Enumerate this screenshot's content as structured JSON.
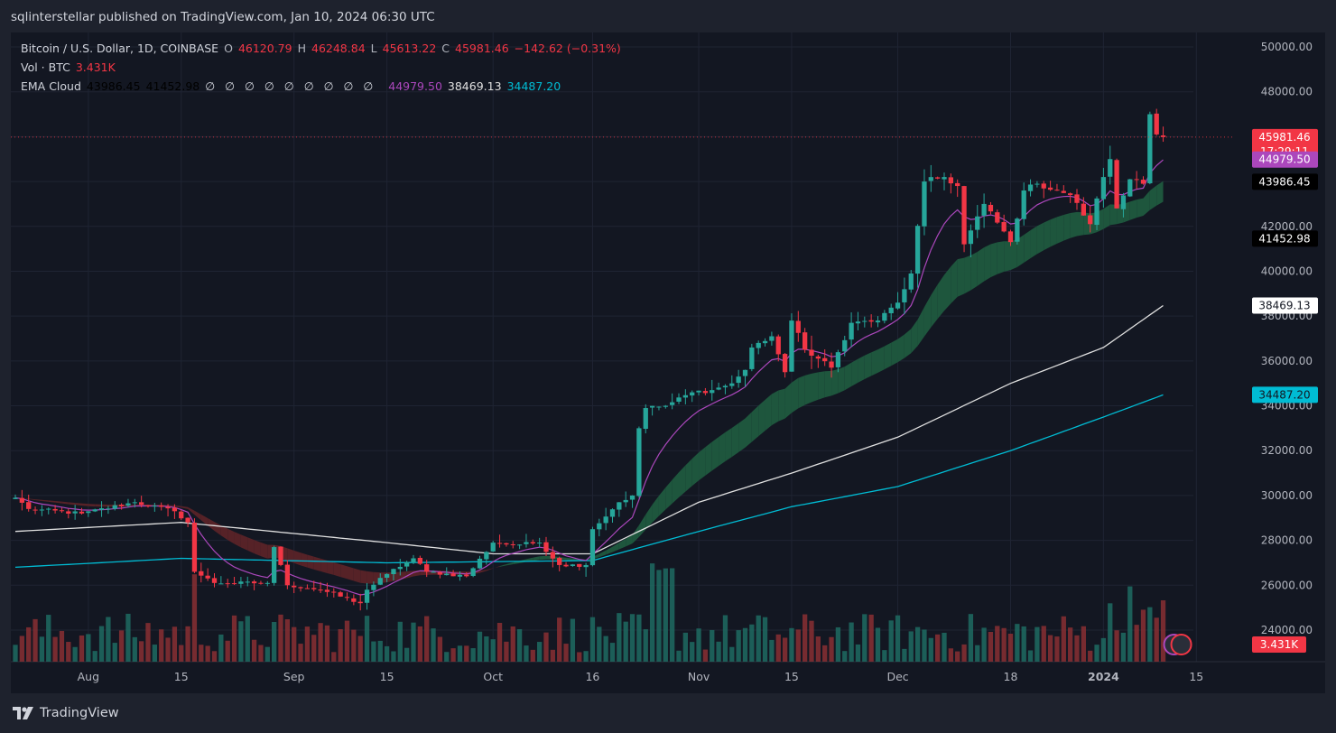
{
  "header": {
    "publisher_line": "sqlinterstellar published on TradingView.com, Jan 10, 2024 06:30 UTC"
  },
  "legend": {
    "symbol": "Bitcoin / U.S. Dollar, 1D, COINBASE",
    "o_label": "O",
    "o_value": "46120.79",
    "h_label": "H",
    "h_value": "46248.84",
    "l_label": "L",
    "l_value": "45613.22",
    "c_label": "C",
    "c_value": "45981.46",
    "change": "−142.62 (−0.31%)",
    "vol_label": "Vol · BTC",
    "vol_value": "3.431K",
    "ema_label": "EMA Cloud",
    "ema_v1": "43986.45",
    "ema_v2": "41452.98",
    "ema_slots": [
      "∅",
      "∅",
      "∅",
      "∅",
      "∅",
      "∅",
      "∅",
      "∅",
      "∅"
    ],
    "ema_v3": "44979.50",
    "ema_v4": "38469.13",
    "ema_v5": "34487.20"
  },
  "footer": {
    "brand": "TradingView"
  },
  "chart_data": {
    "type": "candlestick",
    "y_ticks": [
      "50000.00",
      "48000.00",
      "46000.00",
      "44000.00",
      "42000.00",
      "40000.00",
      "38000.00",
      "36000.00",
      "34000.00",
      "32000.00",
      "30000.00",
      "28000.00",
      "26000.00",
      "24000.00"
    ],
    "y_range": [
      23000,
      50600
    ],
    "x_ticks": [
      {
        "label": "Aug",
        "day": "2023-08-01"
      },
      {
        "label": "15",
        "day": "2023-08-15"
      },
      {
        "label": "Sep",
        "day": "2023-09-01"
      },
      {
        "label": "15",
        "day": "2023-09-15"
      },
      {
        "label": "Oct",
        "day": "2023-10-01"
      },
      {
        "label": "16",
        "day": "2023-10-16"
      },
      {
        "label": "Nov",
        "day": "2023-11-01"
      },
      {
        "label": "15",
        "day": "2023-11-15"
      },
      {
        "label": "Dec",
        "day": "2023-12-01"
      },
      {
        "label": "18",
        "day": "2023-12-18"
      },
      {
        "label": "2024",
        "day": "2024-01-01"
      },
      {
        "label": "15",
        "day": "2024-01-15"
      }
    ],
    "close_anchors": [
      {
        "date": "2023-07-21",
        "close": 29900
      },
      {
        "date": "2023-07-23",
        "close": 29400
      },
      {
        "date": "2023-07-31",
        "close": 29200
      },
      {
        "date": "2023-08-08",
        "close": 29700
      },
      {
        "date": "2023-08-14",
        "close": 29300
      },
      {
        "date": "2023-08-16",
        "close": 28800
      },
      {
        "date": "2023-08-17",
        "close": 26600
      },
      {
        "date": "2023-08-20",
        "close": 26100
      },
      {
        "date": "2023-08-28",
        "close": 26100
      },
      {
        "date": "2023-08-29",
        "close": 27700
      },
      {
        "date": "2023-08-31",
        "close": 26000
      },
      {
        "date": "2023-09-05",
        "close": 25800
      },
      {
        "date": "2023-09-11",
        "close": 25200
      },
      {
        "date": "2023-09-12",
        "close": 25800
      },
      {
        "date": "2023-09-15",
        "close": 26500
      },
      {
        "date": "2023-09-19",
        "close": 27200
      },
      {
        "date": "2023-09-21",
        "close": 26600
      },
      {
        "date": "2023-09-27",
        "close": 26400
      },
      {
        "date": "2023-10-01",
        "close": 27900
      },
      {
        "date": "2023-10-04",
        "close": 27800
      },
      {
        "date": "2023-10-08",
        "close": 27900
      },
      {
        "date": "2023-10-11",
        "close": 26900
      },
      {
        "date": "2023-10-15",
        "close": 26900
      },
      {
        "date": "2023-10-16",
        "close": 28500
      },
      {
        "date": "2023-10-20",
        "close": 29700
      },
      {
        "date": "2023-10-22",
        "close": 30000
      },
      {
        "date": "2023-10-23",
        "close": 33000
      },
      {
        "date": "2023-10-24",
        "close": 33900
      },
      {
        "date": "2023-10-27",
        "close": 34000
      },
      {
        "date": "2023-10-31",
        "close": 34600
      },
      {
        "date": "2023-11-03",
        "close": 34700
      },
      {
        "date": "2023-11-06",
        "close": 35000
      },
      {
        "date": "2023-11-08",
        "close": 35600
      },
      {
        "date": "2023-11-09",
        "close": 36600
      },
      {
        "date": "2023-11-12",
        "close": 37100
      },
      {
        "date": "2023-11-14",
        "close": 35500
      },
      {
        "date": "2023-11-15",
        "close": 37800
      },
      {
        "date": "2023-11-17",
        "close": 36500
      },
      {
        "date": "2023-11-21",
        "close": 35700
      },
      {
        "date": "2023-11-24",
        "close": 37700
      },
      {
        "date": "2023-11-28",
        "close": 37800
      },
      {
        "date": "2023-12-01",
        "close": 38600
      },
      {
        "date": "2023-12-03",
        "close": 39900
      },
      {
        "date": "2023-12-05",
        "close": 44000
      },
      {
        "date": "2023-12-08",
        "close": 44200
      },
      {
        "date": "2023-12-10",
        "close": 43800
      },
      {
        "date": "2023-12-11",
        "close": 41200
      },
      {
        "date": "2023-12-14",
        "close": 43000
      },
      {
        "date": "2023-12-18",
        "close": 41300
      },
      {
        "date": "2023-12-20",
        "close": 43600
      },
      {
        "date": "2023-12-22",
        "close": 43900
      },
      {
        "date": "2023-12-25",
        "close": 43600
      },
      {
        "date": "2023-12-27",
        "close": 43400
      },
      {
        "date": "2023-12-30",
        "close": 42100
      },
      {
        "date": "2024-01-01",
        "close": 44200
      },
      {
        "date": "2024-01-02",
        "close": 45000
      },
      {
        "date": "2024-01-03",
        "close": 42800
      },
      {
        "date": "2024-01-05",
        "close": 44100
      },
      {
        "date": "2024-01-07",
        "close": 43900
      },
      {
        "date": "2024-01-08",
        "close": 47000
      },
      {
        "date": "2024-01-09",
        "close": 46100
      },
      {
        "date": "2024-01-10",
        "close": 45981
      }
    ],
    "ema_slow": [
      {
        "date": "2023-07-21",
        "value": 28400
      },
      {
        "date": "2023-08-15",
        "value": 28800
      },
      {
        "date": "2023-09-15",
        "value": 27900
      },
      {
        "date": "2023-10-01",
        "value": 27400
      },
      {
        "date": "2023-10-16",
        "value": 27400
      },
      {
        "date": "2023-11-01",
        "value": 29700
      },
      {
        "date": "2023-11-15",
        "value": 31000
      },
      {
        "date": "2023-12-01",
        "value": 32600
      },
      {
        "date": "2023-12-18",
        "value": 35000
      },
      {
        "date": "2024-01-01",
        "value": 36600
      },
      {
        "date": "2024-01-10",
        "value": 38469
      }
    ],
    "ema_slowest": [
      {
        "date": "2023-07-21",
        "value": 26800
      },
      {
        "date": "2023-08-15",
        "value": 27200
      },
      {
        "date": "2023-09-15",
        "value": 27000
      },
      {
        "date": "2023-10-16",
        "value": 27100
      },
      {
        "date": "2023-11-01",
        "value": 28400
      },
      {
        "date": "2023-11-15",
        "value": 29500
      },
      {
        "date": "2023-12-01",
        "value": 30400
      },
      {
        "date": "2023-12-18",
        "value": 32000
      },
      {
        "date": "2024-01-01",
        "value": 33500
      },
      {
        "date": "2024-01-10",
        "value": 34487
      }
    ],
    "volume_max": 28500,
    "price_tags": [
      {
        "label": "45981.46",
        "sub": "17:29:11",
        "value": 45981.46,
        "bg": "#f23645",
        "fg": "#ffffff"
      },
      {
        "label": "44979.50",
        "value": 44979.5,
        "bg": "#ab47bc",
        "fg": "#ffffff"
      },
      {
        "label": "43986.45",
        "value": 43986.45,
        "bg": "#000000",
        "fg": "#ffffff"
      },
      {
        "label": "41452.98",
        "value": 41452.98,
        "bg": "#000000",
        "fg": "#ffffff"
      },
      {
        "label": "38469.13",
        "value": 38469.13,
        "bg": "#ffffff",
        "fg": "#131722"
      },
      {
        "label": "34487.20",
        "value": 34487.2,
        "bg": "#00bcd4",
        "fg": "#131722"
      }
    ],
    "volume_tag": {
      "label": "3.431K",
      "bg": "#f23645",
      "fg": "#ffffff"
    },
    "colors": {
      "up": "#26a69a",
      "down": "#f23645",
      "ema_fast": "#ab47bc",
      "ema_slow": "#e0e0e0",
      "ema_slowest": "#00bcd4",
      "cloud_up": "#1f5a3f",
      "cloud_down": "#5a2328"
    }
  }
}
